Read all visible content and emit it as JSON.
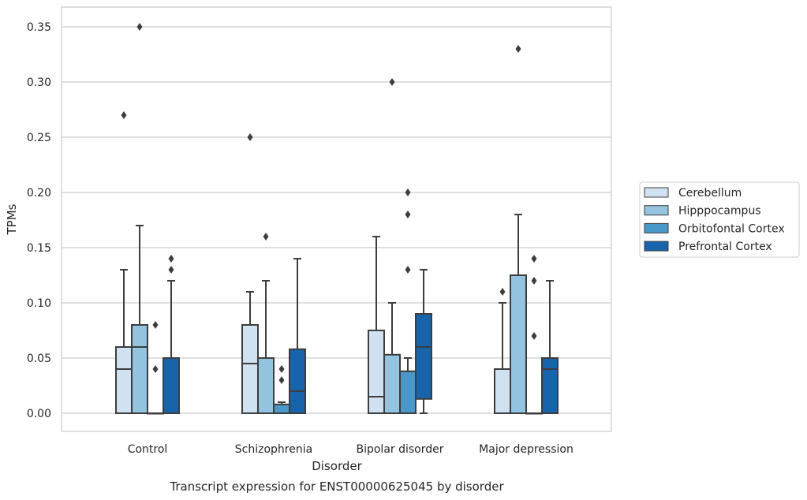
{
  "chart_data": {
    "type": "boxplot",
    "title": "Transcript expression for ENST00000625045 by disorder",
    "xlabel": "Disorder",
    "ylabel": "TPMs",
    "ylim": [
      -0.017,
      0.368
    ],
    "yticks": [
      "0.00",
      "0.05",
      "0.10",
      "0.15",
      "0.20",
      "0.25",
      "0.30",
      "0.35"
    ],
    "grid": "horizontal",
    "legend_position": "right",
    "categories": [
      "Control",
      "Schizophrenia",
      "Bipolar disorder",
      "Major depression"
    ],
    "colors": {
      "Cerebellum": "#d0e1f2",
      "Hipppocampus": "#94c4df",
      "Orbitofontal Cortex": "#4a98c9",
      "Prefrontal Cortex": "#1764ab",
      "edge": "#3d3d3d",
      "grid": "#cccccc",
      "frame": "#cccccc"
    },
    "series": [
      {
        "name": "Cerebellum",
        "boxes": [
          {
            "q1": 0.0,
            "median": 0.04,
            "q3": 0.06,
            "whisker_low": 0.0,
            "whisker_high": 0.13,
            "outliers": [
              0.27
            ]
          },
          {
            "q1": 0.0,
            "median": 0.045,
            "q3": 0.08,
            "whisker_low": 0.0,
            "whisker_high": 0.11,
            "outliers": [
              0.25
            ]
          },
          {
            "q1": 0.0,
            "median": 0.015,
            "q3": 0.075,
            "whisker_low": 0.0,
            "whisker_high": 0.16,
            "outliers": []
          },
          {
            "q1": 0.0,
            "median": 0.0,
            "q3": 0.04,
            "whisker_low": 0.0,
            "whisker_high": 0.1,
            "outliers": [
              0.11
            ]
          }
        ]
      },
      {
        "name": "Hipppocampus",
        "boxes": [
          {
            "q1": 0.0,
            "median": 0.06,
            "q3": 0.08,
            "whisker_low": 0.0,
            "whisker_high": 0.17,
            "outliers": [
              0.35
            ]
          },
          {
            "q1": 0.0,
            "median": 0.0,
            "q3": 0.05,
            "whisker_low": 0.0,
            "whisker_high": 0.12,
            "outliers": [
              0.16
            ]
          },
          {
            "q1": 0.0,
            "median": 0.0,
            "q3": 0.053,
            "whisker_low": 0.0,
            "whisker_high": 0.1,
            "outliers": [
              0.3
            ]
          },
          {
            "q1": 0.0,
            "median": 0.0,
            "q3": 0.125,
            "whisker_low": 0.0,
            "whisker_high": 0.18,
            "outliers": [
              0.33
            ]
          }
        ]
      },
      {
        "name": "Orbitofontal Cortex",
        "boxes": [
          {
            "q1": 0.0,
            "median": 0.0,
            "q3": 0.0,
            "whisker_low": 0.0,
            "whisker_high": 0.0,
            "outliers": [
              0.04,
              0.08
            ]
          },
          {
            "q1": 0.0,
            "median": 0.0,
            "q3": 0.008,
            "whisker_low": 0.0,
            "whisker_high": 0.01,
            "outliers": [
              0.03,
              0.04
            ]
          },
          {
            "q1": 0.0,
            "median": 0.0,
            "q3": 0.038,
            "whisker_low": 0.0,
            "whisker_high": 0.05,
            "outliers": [
              0.13,
              0.18,
              0.2
            ]
          },
          {
            "q1": 0.0,
            "median": 0.0,
            "q3": 0.0,
            "whisker_low": 0.0,
            "whisker_high": 0.0,
            "outliers": [
              0.07,
              0.12,
              0.14
            ]
          }
        ]
      },
      {
        "name": "Prefrontal Cortex",
        "boxes": [
          {
            "q1": 0.0,
            "median": 0.0,
            "q3": 0.05,
            "whisker_low": 0.0,
            "whisker_high": 0.12,
            "outliers": [
              0.13,
              0.14
            ]
          },
          {
            "q1": 0.0,
            "median": 0.02,
            "q3": 0.058,
            "whisker_low": 0.0,
            "whisker_high": 0.14,
            "outliers": []
          },
          {
            "q1": 0.013,
            "median": 0.06,
            "q3": 0.09,
            "whisker_low": 0.0,
            "whisker_high": 0.13,
            "outliers": []
          },
          {
            "q1": 0.0,
            "median": 0.04,
            "q3": 0.05,
            "whisker_low": 0.0,
            "whisker_high": 0.12,
            "outliers": []
          }
        ]
      }
    ]
  }
}
